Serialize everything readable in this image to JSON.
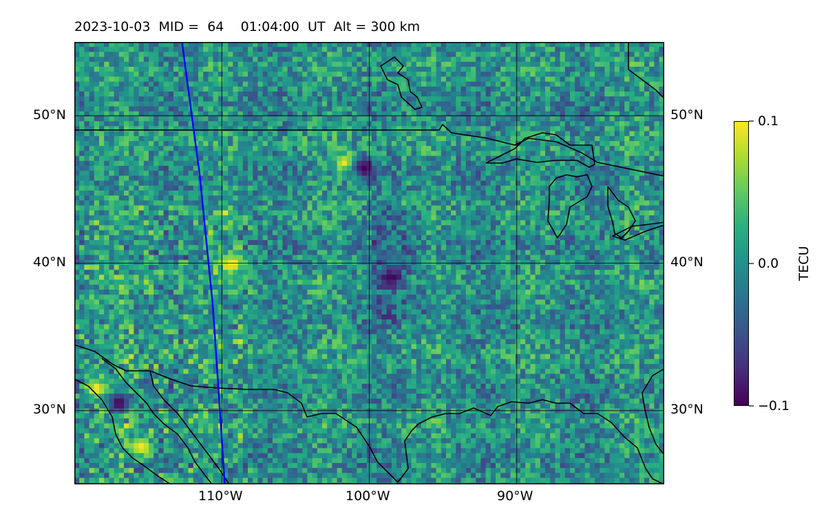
{
  "title": {
    "date": "2023-10-03",
    "mid_label": "MID =",
    "mid_value": "64",
    "time": "01:04:00",
    "time_unit": "UT",
    "alt_label": "Alt = 300 km"
  },
  "map": {
    "type": "heatmap",
    "lon_range": [
      -120,
      -80
    ],
    "lat_range": [
      25,
      55
    ],
    "lat_ticks": [
      {
        "value": 50,
        "label": "50°N"
      },
      {
        "value": 40,
        "label": "40°N"
      },
      {
        "value": 30,
        "label": "30°N"
      }
    ],
    "lon_ticks": [
      {
        "value": -110,
        "label": "110°W"
      },
      {
        "value": -100,
        "label": "100°W"
      },
      {
        "value": -90,
        "label": "90°W"
      }
    ],
    "grid": true,
    "overlay_line_color": "#0000ff",
    "boundary_color": "#000000"
  },
  "chart_data": {
    "type": "heatmap",
    "variable": "TECU",
    "lon_range": [
      -120,
      -80
    ],
    "lat_range": [
      25,
      55
    ],
    "color_range": [
      -0.1,
      0.1
    ],
    "colormap": "viridis",
    "notable_features": [
      {
        "lon": -115.5,
        "lat": 27.5,
        "value": 0.1
      },
      {
        "lon": -118.5,
        "lat": 31.5,
        "value": 0.1
      },
      {
        "lon": -109.3,
        "lat": 40.0,
        "value": 0.1
      },
      {
        "lon": -101.5,
        "lat": 46.8,
        "value": 0.1
      },
      {
        "lon": -100.4,
        "lat": 46.5,
        "value": -0.1
      },
      {
        "lon": -98.5,
        "lat": 39.0,
        "value": -0.1
      },
      {
        "lon": -117.0,
        "lat": 30.5,
        "value": -0.1
      }
    ],
    "satellite_track": {
      "lon": [
        -112.7,
        -112.3,
        -111.9,
        -111.5,
        -111.2,
        -110.9,
        -110.6,
        -110.4,
        -110.2,
        -110.0,
        -109.8
      ],
      "lat": [
        55.0,
        52.0,
        49.0,
        46.0,
        43.0,
        40.0,
        37.0,
        34.0,
        31.0,
        28.0,
        25.0
      ]
    }
  },
  "colorbar": {
    "label": "TECU",
    "ticks": [
      {
        "value": 0.1,
        "label": "0.1"
      },
      {
        "value": 0.0,
        "label": "0.0"
      },
      {
        "value": -0.1,
        "label": "−0.1"
      }
    ]
  }
}
